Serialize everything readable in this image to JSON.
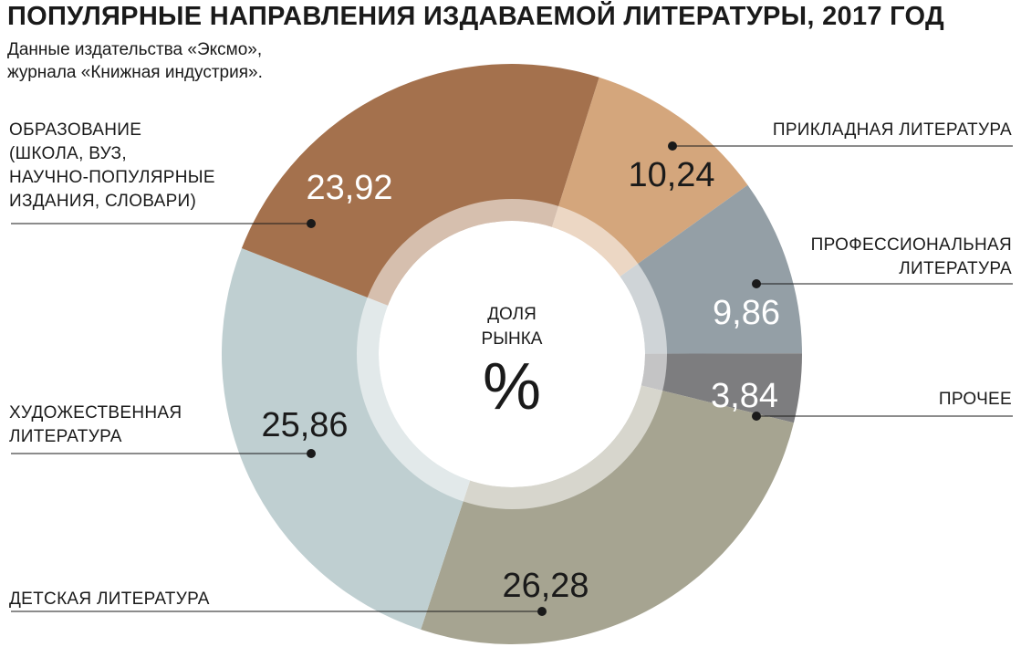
{
  "title": "ПОПУЛЯРНЫЕ НАПРАВЛЕНИЯ ИЗДАВАЕМОЙ ЛИТЕРАТУРЫ, 2017 ГОД",
  "subtitle": [
    "Данные издательства «Эксмо»,",
    "журнала «Книжная индустрия»."
  ],
  "center": {
    "line1": "ДОЛЯ",
    "line2": "РЫНКА",
    "symbol": "%"
  },
  "chart_data": {
    "type": "pie",
    "variant": "donut",
    "title": "ПОПУЛЯРНЫЕ НАПРАВЛЕНИЯ ИЗДАВАЕМОЙ ЛИТЕРАТУРЫ, 2017 ГОД",
    "unit": "%",
    "slices": [
      {
        "label": "ПРИКЛАДНАЯ ЛИТЕРАТУРА",
        "label_lines": [
          "ПРИКЛАДНАЯ ЛИТЕРАТУРА"
        ],
        "value": 10.24,
        "value_text": "10,24",
        "color": "#d4a67c",
        "value_color": "#1a1a1a"
      },
      {
        "label": "ПРОФЕССИОНАЛЬНАЯ ЛИТЕРАТУРА",
        "label_lines": [
          "ПРОФЕССИОНАЛЬНАЯ",
          "ЛИТЕРАТУРА"
        ],
        "value": 9.86,
        "value_text": "9,86",
        "color": "#949fa6",
        "value_color": "#ffffff"
      },
      {
        "label": "ПРОЧЕЕ",
        "label_lines": [
          "ПРОЧЕЕ"
        ],
        "value": 3.84,
        "value_text": "3,84",
        "color": "#7d7d7f",
        "value_color": "#ffffff"
      },
      {
        "label": "ДЕТСКАЯ ЛИТЕРАТУРА",
        "label_lines": [
          "ДЕТСКАЯ ЛИТЕРАТУРА"
        ],
        "value": 26.28,
        "value_text": "26,28",
        "color": "#a6a491",
        "value_color": "#1a1a1a"
      },
      {
        "label": "ХУДОЖЕСТВЕННАЯ ЛИТЕРАТУРА",
        "label_lines": [
          "ХУДОЖЕСТВЕННАЯ",
          "ЛИТЕРАТУРА"
        ],
        "value": 25.86,
        "value_text": "25,86",
        "color": "#bfcfd1",
        "value_color": "#1a1a1a"
      },
      {
        "label": "ОБРАЗОВАНИЕ (ШКОЛА, ВУЗ, НАУЧНО-ПОПУЛЯРНЫЕ ИЗДАНИЯ, СЛОВАРИ)",
        "label_lines": [
          "ОБРАЗОВАНИЕ",
          "(ШКОЛА, ВУЗ,",
          "НАУЧНО-ПОПУЛЯРНЫЕ",
          "ИЗДАНИЯ, СЛОВАРИ)"
        ],
        "value": 23.92,
        "value_text": "23,92",
        "color": "#a4714d",
        "value_color": "#ffffff"
      }
    ]
  }
}
